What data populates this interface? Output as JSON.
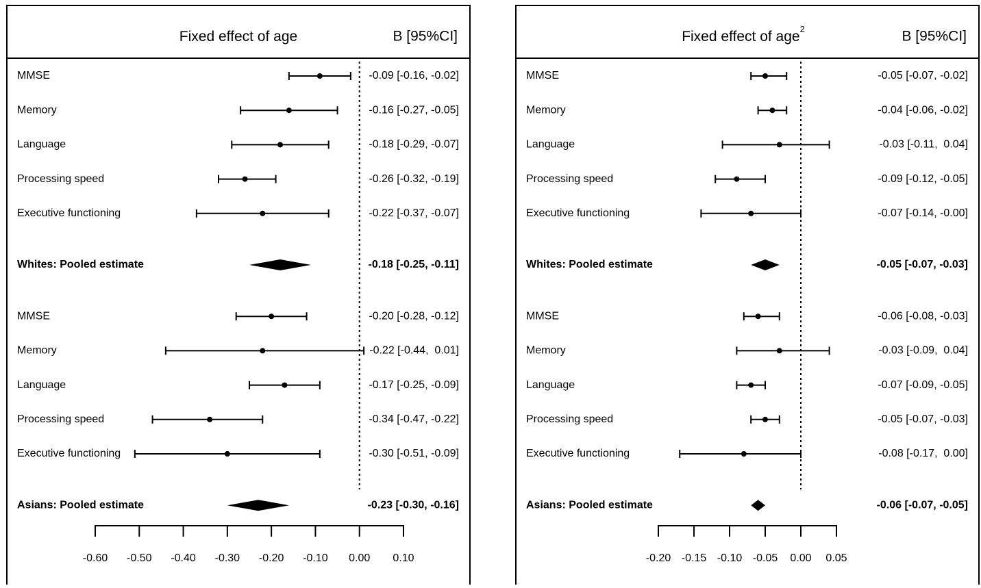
{
  "chart_data": [
    {
      "type": "forest",
      "title": "Fixed effect of age",
      "column_header": "B [95%CI]",
      "categories": [
        "MMSE",
        "Memory",
        "Language",
        "Processing speed",
        "Executive functioning",
        "Whites: Pooled estimate",
        "MMSE",
        "Memory",
        "Language",
        "Processing speed",
        "Executive functioning",
        "Asians: Pooled estimate"
      ],
      "pooled": [
        false,
        false,
        false,
        false,
        false,
        true,
        false,
        false,
        false,
        false,
        false,
        true
      ],
      "values": [
        -0.09,
        -0.16,
        -0.18,
        -0.26,
        -0.22,
        -0.18,
        -0.2,
        -0.22,
        -0.17,
        -0.34,
        -0.3,
        -0.23
      ],
      "lower": [
        -0.16,
        -0.27,
        -0.29,
        -0.32,
        -0.37,
        -0.25,
        -0.28,
        -0.44,
        -0.25,
        -0.47,
        -0.51,
        -0.3
      ],
      "upper": [
        -0.02,
        -0.05,
        -0.07,
        -0.19,
        -0.07,
        -0.11,
        -0.12,
        0.01,
        -0.09,
        -0.22,
        -0.09,
        -0.16
      ],
      "value_labels": [
        "-0.09 [-0.16, -0.02]",
        "-0.16 [-0.27, -0.05]",
        "-0.18 [-0.29, -0.07]",
        "-0.26 [-0.32, -0.19]",
        "-0.22 [-0.37, -0.07]",
        "-0.18 [-0.25, -0.11]",
        "-0.20 [-0.28, -0.12]",
        "-0.22 [-0.44,  0.01]",
        "-0.17 [-0.25, -0.09]",
        "-0.34 [-0.47, -0.22]",
        "-0.30 [-0.51, -0.09]",
        "-0.23 [-0.30, -0.16]"
      ],
      "xlim": [
        -0.6,
        0.1
      ],
      "xticks": [
        {
          "value": -0.6,
          "label": "-0.60"
        },
        {
          "value": -0.5,
          "label": "-0.50"
        },
        {
          "value": -0.4,
          "label": "-0.40"
        },
        {
          "value": -0.3,
          "label": "-0.30"
        },
        {
          "value": -0.2,
          "label": "-0.20"
        },
        {
          "value": -0.1,
          "label": "-0.10"
        },
        {
          "value": 0,
          "label": "0.00"
        },
        {
          "value": 0.1,
          "label": "0.10"
        }
      ]
    },
    {
      "type": "forest",
      "title": "Fixed effect of age",
      "title_sup": "2",
      "column_header": "B [95%CI]",
      "categories": [
        "MMSE",
        "Memory",
        "Language",
        "Processing speed",
        "Executive functioning",
        "Whites: Pooled estimate",
        "MMSE",
        "Memory",
        "Language",
        "Processing speed",
        "Executive functioning",
        "Asians: Pooled estimate"
      ],
      "pooled": [
        false,
        false,
        false,
        false,
        false,
        true,
        false,
        false,
        false,
        false,
        false,
        true
      ],
      "values": [
        -0.05,
        -0.04,
        -0.03,
        -0.09,
        -0.07,
        -0.05,
        -0.06,
        -0.03,
        -0.07,
        -0.05,
        -0.08,
        -0.06
      ],
      "lower": [
        -0.07,
        -0.06,
        -0.11,
        -0.12,
        -0.14,
        -0.07,
        -0.08,
        -0.09,
        -0.09,
        -0.07,
        -0.17,
        -0.07
      ],
      "upper": [
        -0.02,
        -0.02,
        0.04,
        -0.05,
        0,
        -0.03,
        -0.03,
        0.04,
        -0.05,
        -0.03,
        0,
        -0.05
      ],
      "value_labels": [
        "-0.05 [-0.07, -0.02]",
        "-0.04 [-0.06, -0.02]",
        "-0.03 [-0.11,  0.04]",
        "-0.09 [-0.12, -0.05]",
        "-0.07 [-0.14, -0.00]",
        "-0.05 [-0.07, -0.03]",
        "-0.06 [-0.08, -0.03]",
        "-0.03 [-0.09,  0.04]",
        "-0.07 [-0.09, -0.05]",
        "-0.05 [-0.07, -0.03]",
        "-0.08 [-0.17,  0.00]",
        "-0.06 [-0.07, -0.05]"
      ],
      "xlim": [
        -0.2,
        0.05
      ],
      "xticks": [
        {
          "value": -0.2,
          "label": "-0.20"
        },
        {
          "value": -0.15,
          "label": "-0.15"
        },
        {
          "value": -0.1,
          "label": "-0.10"
        },
        {
          "value": -0.05,
          "label": "-0.05"
        },
        {
          "value": 0,
          "label": "0.00"
        },
        {
          "value": 0.05,
          "label": "0.05"
        }
      ]
    }
  ]
}
